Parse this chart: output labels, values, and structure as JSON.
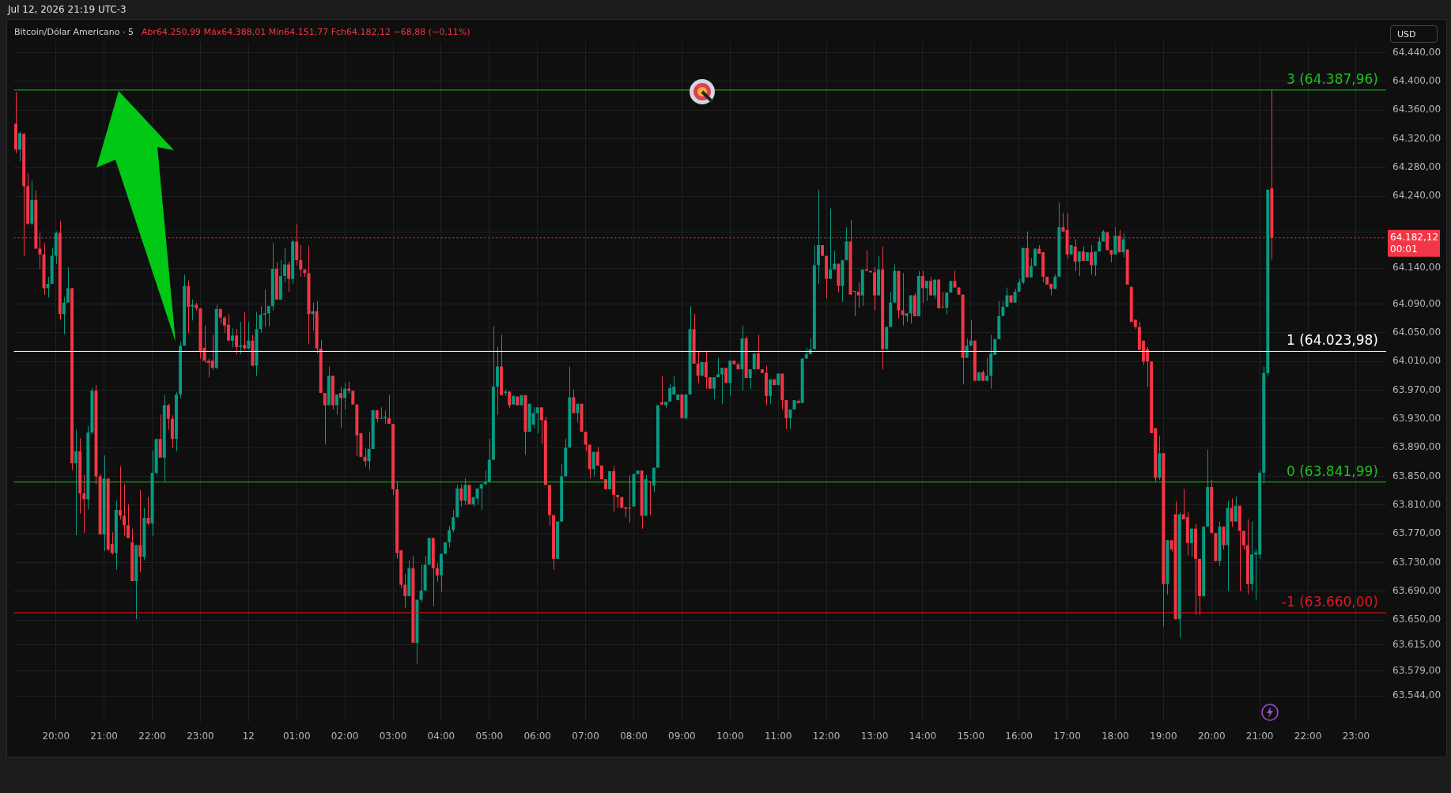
{
  "chart_data": {
    "type": "candlestick",
    "title": "Bitcoin/Dólar Americano · 5",
    "subtitle": "Abr64.250,99 Máx64.388,01 Mín64.151,77 Fch64.182,12 −68,88 (−0,11%)",
    "ylabel": "USD",
    "annotations": [
      "Jul 12, 2026 21:19 UTC-3",
      "00:01"
    ],
    "categories": [
      null,
      null,
      null,
      null,
      null,
      null,
      null,
      null,
      null,
      null,
      "20:00",
      null,
      null,
      null,
      null,
      null,
      null,
      null,
      null,
      null,
      null,
      null,
      "21:00",
      null,
      null,
      null,
      null,
      null,
      null,
      null,
      null,
      null,
      null,
      null,
      "22:00",
      null,
      null,
      null,
      null,
      null,
      null,
      null,
      null,
      null,
      null,
      null,
      "23:00",
      null,
      null,
      null,
      null,
      null,
      null,
      null,
      null,
      null,
      null,
      null,
      "12",
      null,
      null,
      null,
      null,
      null,
      null,
      null,
      null,
      null,
      null,
      null,
      "01:00",
      null,
      null,
      null,
      null,
      null,
      null,
      null,
      null,
      null,
      null,
      null,
      "02:00",
      null,
      null,
      null,
      null,
      null,
      null,
      null,
      null,
      null,
      null,
      null,
      "03:00",
      null,
      null,
      null,
      null,
      null,
      null,
      null,
      null,
      null,
      null,
      null,
      "04:00",
      null,
      null,
      null,
      null,
      null,
      null,
      null,
      null,
      null,
      null,
      null,
      "05:00",
      null,
      null,
      null,
      null,
      null,
      null,
      null,
      null,
      null,
      null,
      null,
      "06:00",
      null,
      null,
      null,
      null,
      null,
      null,
      null,
      null,
      null,
      null,
      null,
      "07:00",
      null,
      null,
      null,
      null,
      null,
      null,
      null,
      null,
      null,
      null,
      null,
      "08:00",
      null,
      null,
      null,
      null,
      null,
      null,
      null,
      null,
      null,
      null,
      null,
      "09:00",
      null,
      null,
      null,
      null,
      null,
      null,
      null,
      null,
      null,
      null,
      null,
      "10:00",
      null,
      null,
      null,
      null,
      null,
      null,
      null,
      null,
      null,
      null,
      null,
      "11:00",
      null,
      null,
      null,
      null,
      null,
      null,
      null,
      null,
      null,
      null,
      null,
      "12:00",
      null,
      null,
      null,
      null,
      null,
      null,
      null,
      null,
      null,
      null,
      null,
      "13:00",
      null,
      null,
      null,
      null,
      null,
      null,
      null,
      null,
      null,
      null,
      null,
      "14:00",
      null,
      null,
      null,
      null,
      null,
      null,
      null,
      null,
      null,
      null,
      null,
      "15:00",
      null,
      null,
      null,
      null,
      null,
      null,
      null,
      null,
      null,
      null,
      null,
      "16:00",
      null,
      null,
      null,
      null,
      null,
      null,
      null,
      null,
      null,
      null,
      null,
      "17:00",
      null,
      null,
      null,
      null,
      null,
      null,
      null,
      null,
      null,
      null,
      null,
      "18:00",
      null,
      null,
      null,
      null,
      null,
      null,
      null,
      null,
      null,
      null,
      null,
      "19:00",
      null,
      null,
      null,
      null,
      null,
      null,
      null,
      null,
      null,
      null,
      null,
      "20:00",
      null,
      null,
      null,
      null,
      null,
      null,
      null,
      null,
      null,
      null,
      null,
      "21:00",
      null,
      null,
      null,
      null,
      null,
      null,
      null,
      null,
      null,
      null,
      null,
      "22:00",
      null,
      null,
      null,
      null,
      null,
      null,
      null,
      null,
      null,
      null,
      null,
      "23:00",
      null,
      null,
      null,
      null,
      null,
      null,
      null
    ],
    "ohlc": [
      [
        64341,
        64385,
        64300,
        64305
      ],
      [
        64305,
        64330,
        64289,
        64328
      ],
      [
        64327,
        64328,
        64157,
        64254
      ],
      [
        64254,
        64272,
        64200,
        64202
      ],
      [
        64202,
        64262,
        64200,
        64235
      ],
      [
        64235,
        64248,
        64167,
        64167
      ],
      [
        64167,
        64189,
        64139,
        64159
      ],
      [
        64159,
        64175,
        64103,
        64112
      ],
      [
        64112,
        64128,
        64099,
        64118
      ],
      [
        64118,
        64168,
        64118,
        64157
      ],
      [
        64157,
        64191,
        64146,
        64189
      ],
      [
        64189,
        64206,
        64068,
        64076
      ],
      [
        64076,
        64100,
        64048,
        64092
      ],
      [
        64092,
        64141,
        64092,
        64112
      ],
      [
        64112,
        64112,
        63859,
        63868
      ],
      [
        63868,
        63915,
        63768,
        63885
      ],
      [
        63885,
        63903,
        63798,
        63826
      ],
      [
        63826,
        63852,
        63771,
        63818
      ],
      [
        63818,
        63920,
        63804,
        63911
      ],
      [
        63911,
        63973,
        63909,
        63969
      ],
      [
        63969,
        63977,
        63839,
        63850
      ],
      [
        63850,
        63853,
        63769,
        63769
      ],
      [
        63769,
        63879,
        63746,
        63847
      ],
      [
        63847,
        63847,
        63746,
        63748
      ],
      [
        63756,
        63772,
        63741,
        63743
      ],
      [
        63743,
        63816,
        63720,
        63803
      ],
      [
        63803,
        63864,
        63790,
        63795
      ],
      [
        63795,
        63839,
        63767,
        63782
      ],
      [
        63782,
        63811,
        63764,
        63764
      ],
      [
        63758,
        63777,
        63704,
        63704
      ],
      [
        63704,
        63754,
        63651,
        63754
      ],
      [
        63754,
        63831,
        63717,
        63738
      ],
      [
        63738,
        63806,
        63733,
        63792
      ],
      [
        63792,
        63821,
        63782,
        63784
      ],
      [
        63784,
        63886,
        63767,
        63855
      ],
      [
        63855,
        63902,
        63852,
        63902
      ],
      [
        63902,
        63936,
        63876,
        63876
      ],
      [
        63876,
        63963,
        63842,
        63949
      ],
      [
        63949,
        63951,
        63915,
        63930
      ],
      [
        63930,
        63935,
        63889,
        63902
      ],
      [
        63902,
        63967,
        63885,
        63964
      ],
      [
        63964,
        64037,
        63959,
        64032
      ],
      [
        64032,
        64131,
        64032,
        64115
      ],
      [
        64115,
        64123,
        64050,
        64086
      ],
      [
        64086,
        64096,
        64067,
        64089
      ],
      [
        64089,
        64092,
        64081,
        64084
      ],
      [
        64084,
        64084,
        64014,
        64024
      ],
      [
        64029,
        64060,
        64008,
        64011
      ],
      [
        64011,
        64014,
        63988,
        64008
      ],
      [
        64011,
        64047,
        63998,
        64001
      ],
      [
        64001,
        64089,
        63999,
        64083
      ],
      [
        64083,
        64083,
        64063,
        64071
      ],
      [
        64071,
        64073,
        64050,
        64060
      ],
      [
        64061,
        64076,
        64039,
        64039
      ],
      [
        64039,
        64056,
        64029,
        64046
      ],
      [
        64046,
        64055,
        64020,
        64030
      ],
      [
        64030,
        64065,
        64020,
        64032
      ],
      [
        64033,
        64079,
        64026,
        64028
      ],
      [
        64028,
        64065,
        64027,
        64039
      ],
      [
        64039,
        64047,
        64004,
        64004
      ],
      [
        64004,
        64079,
        63990,
        64055
      ],
      [
        64055,
        64087,
        64050,
        64075
      ],
      [
        64075,
        64110,
        64058,
        64077
      ],
      [
        64077,
        64087,
        64059,
        64087
      ],
      [
        64087,
        64175,
        64081,
        64139
      ],
      [
        64139,
        64148,
        64096,
        64096
      ],
      [
        64096,
        64151,
        64096,
        64129
      ],
      [
        64129,
        64168,
        64120,
        64145
      ],
      [
        64145,
        64149,
        64107,
        64125
      ],
      [
        64125,
        64180,
        64118,
        64177
      ],
      [
        64177,
        64201,
        64144,
        64151
      ],
      [
        64151,
        64172,
        64128,
        64138
      ],
      [
        64138,
        64138,
        64128,
        64133
      ],
      [
        64133,
        64171,
        64034,
        64076
      ],
      [
        64076,
        64092,
        64053,
        64080
      ],
      [
        64080,
        64094,
        64021,
        64028
      ],
      [
        64028,
        64040,
        63966,
        63966
      ],
      [
        63966,
        63966,
        63895,
        63949
      ],
      [
        63949,
        64003,
        63949,
        63990
      ],
      [
        63990,
        63990,
        63943,
        63949
      ],
      [
        63949,
        63964,
        63936,
        63964
      ],
      [
        63966,
        63975,
        63917,
        63959
      ],
      [
        63959,
        63980,
        63943,
        63972
      ],
      [
        63972,
        63982,
        63965,
        63969
      ],
      [
        63969,
        63969,
        63950,
        63950
      ],
      [
        63950,
        63950,
        63878,
        63907
      ],
      [
        63910,
        63910,
        63877,
        63877
      ],
      [
        63877,
        63889,
        63863,
        63871
      ],
      [
        63871,
        63912,
        63859,
        63888
      ],
      [
        63888,
        63942,
        63888,
        63942
      ],
      [
        63942,
        63942,
        63925,
        63930
      ],
      [
        63930,
        63946,
        63930,
        63931
      ],
      [
        63931,
        63942,
        63923,
        63933
      ],
      [
        63931,
        63963,
        63923,
        63923
      ],
      [
        63923,
        63923,
        63824,
        63832
      ],
      [
        63832,
        63843,
        63735,
        63743
      ],
      [
        63747,
        63747,
        63694,
        63699
      ],
      [
        63699,
        63714,
        63666,
        63683
      ],
      [
        63683,
        63733,
        63683,
        63722
      ],
      [
        63722,
        63739,
        63618,
        63618
      ],
      [
        63618,
        63678,
        63589,
        63678
      ],
      [
        63678,
        63727,
        63675,
        63691
      ],
      [
        63691,
        63739,
        63691,
        63727
      ],
      [
        63727,
        63764,
        63727,
        63764
      ],
      [
        63764,
        63764,
        63669,
        63722
      ],
      [
        63722,
        63729,
        63703,
        63712
      ],
      [
        63712,
        63742,
        63689,
        63742
      ],
      [
        63742,
        63758,
        63742,
        63758
      ],
      [
        63758,
        63781,
        63751,
        63775
      ],
      [
        63775,
        63803,
        63772,
        63793
      ],
      [
        63793,
        63838,
        63793,
        63833
      ],
      [
        63833,
        63839,
        63808,
        63816
      ],
      [
        63816,
        63847,
        63810,
        63838
      ],
      [
        63838,
        63838,
        63811,
        63811
      ],
      [
        63811,
        63821,
        63808,
        63821
      ],
      [
        63819,
        63833,
        63811,
        63833
      ],
      [
        63833,
        63839,
        63803,
        63839
      ],
      [
        63839,
        63858,
        63838,
        63842
      ],
      [
        63842,
        63902,
        63842,
        63873
      ],
      [
        63873,
        64059,
        63873,
        63975
      ],
      [
        63975,
        64030,
        63936,
        64003
      ],
      [
        64003,
        64047,
        63963,
        63963
      ],
      [
        63966,
        63971,
        63962,
        63968
      ],
      [
        63968,
        63968,
        63945,
        63949
      ],
      [
        63950,
        63962,
        63950,
        63962
      ],
      [
        63961,
        63961,
        63949,
        63949
      ],
      [
        63949,
        63963,
        63949,
        63963
      ],
      [
        63963,
        63963,
        63880,
        63912
      ],
      [
        63912,
        63951,
        63912,
        63951
      ],
      [
        63922,
        63946,
        63917,
        63938
      ],
      [
        63938,
        63946,
        63910,
        63946
      ],
      [
        63946,
        63946,
        63895,
        63928
      ],
      [
        63928,
        63933,
        63838,
        63838
      ],
      [
        63838,
        63838,
        63781,
        63796
      ],
      [
        63796,
        63796,
        63720,
        63735
      ],
      [
        63735,
        63787,
        63735,
        63787
      ],
      [
        63787,
        63867,
        63787,
        63850
      ],
      [
        63850,
        63902,
        63850,
        63890
      ],
      [
        63890,
        64003,
        63890,
        63960
      ],
      [
        63960,
        63971,
        63938,
        63938
      ],
      [
        63938,
        63951,
        63925,
        63951
      ],
      [
        63951,
        63951,
        63912,
        63912
      ],
      [
        63912,
        63912,
        63885,
        63894
      ],
      [
        63894,
        63894,
        63847,
        63860
      ],
      [
        63860,
        63884,
        63850,
        63884
      ],
      [
        63884,
        63891,
        63865,
        63865
      ],
      [
        63865,
        63865,
        63846,
        63846
      ],
      [
        63846,
        63846,
        63832,
        63832
      ],
      [
        63832,
        63857,
        63832,
        63857
      ],
      [
        63857,
        63864,
        63801,
        63824
      ],
      [
        63824,
        63824,
        63806,
        63821
      ],
      [
        63821,
        63821,
        63806,
        63806
      ],
      [
        63807,
        63807,
        63793,
        63805
      ],
      [
        63806,
        63851,
        63785,
        63805
      ],
      [
        63808,
        63853,
        63808,
        63853
      ],
      [
        63853,
        63858,
        63853,
        63858
      ],
      [
        63858,
        63858,
        63777,
        63795
      ],
      [
        63795,
        63852,
        63795,
        63846
      ],
      [
        63843,
        63843,
        63796,
        63842
      ],
      [
        63837,
        63862,
        63828,
        63862
      ],
      [
        63862,
        63949,
        63862,
        63949
      ],
      [
        63953,
        63990,
        63950,
        63950
      ],
      [
        63949,
        63954,
        63945,
        63954
      ],
      [
        63954,
        63978,
        63954,
        63973
      ],
      [
        63964,
        63990,
        63964,
        63975
      ],
      [
        63956,
        63964,
        63956,
        63964
      ],
      [
        63964,
        63964,
        63931,
        63931
      ],
      [
        63931,
        63964,
        63929,
        63964
      ],
      [
        63964,
        64087,
        63964,
        64055
      ],
      [
        64055,
        64076,
        64007,
        64007
      ],
      [
        64007,
        64024,
        63980,
        63990
      ],
      [
        63990,
        64009,
        63990,
        64009
      ],
      [
        64009,
        64025,
        63972,
        63988
      ],
      [
        63988,
        63988,
        63972,
        63972
      ],
      [
        63972,
        63988,
        63957,
        63988
      ],
      [
        63988,
        64015,
        63988,
        63992
      ],
      [
        63992,
        64001,
        63951,
        64001
      ],
      [
        64001,
        64001,
        63980,
        63980
      ],
      [
        63980,
        64011,
        63962,
        64011
      ],
      [
        64011,
        64011,
        64006,
        64006
      ],
      [
        64006,
        64008,
        63999,
        63999
      ],
      [
        63999,
        64060,
        63969,
        64042
      ],
      [
        64042,
        64045,
        63987,
        63987
      ],
      [
        63987,
        63999,
        63972,
        63999
      ],
      [
        63999,
        64021,
        63999,
        64021
      ],
      [
        64021,
        64047,
        63999,
        63999
      ],
      [
        63999,
        63999,
        63994,
        63994
      ],
      [
        63994,
        64004,
        63949,
        63962
      ],
      [
        63962,
        63985,
        63951,
        63985
      ],
      [
        63985,
        63985,
        63977,
        63977
      ],
      [
        63977,
        63993,
        63977,
        63993
      ],
      [
        63993,
        63993,
        63943,
        63956
      ],
      [
        63956,
        63956,
        63916,
        63931
      ],
      [
        63931,
        63943,
        63916,
        63943
      ],
      [
        63943,
        63956,
        63943,
        63956
      ],
      [
        63955,
        63957,
        63952,
        63952
      ],
      [
        63952,
        64014,
        63952,
        64014
      ],
      [
        64014,
        64029,
        64014,
        64020
      ],
      [
        64020,
        64042,
        64020,
        64027
      ],
      [
        64027,
        64172,
        64027,
        64144
      ],
      [
        64144,
        64249,
        64118,
        64172
      ],
      [
        64172,
        64172,
        64157,
        64157
      ],
      [
        64157,
        64157,
        64098,
        64125
      ],
      [
        64125,
        64223,
        64125,
        64138
      ],
      [
        64138,
        64164,
        64138,
        64146
      ],
      [
        64146,
        64146,
        64106,
        64115
      ],
      [
        64115,
        64151,
        64093,
        64151
      ],
      [
        64151,
        64197,
        64151,
        64177
      ],
      [
        64177,
        64207,
        64103,
        64103
      ],
      [
        64108,
        64108,
        64073,
        64107
      ],
      [
        64107,
        64120,
        64085,
        64102
      ],
      [
        64102,
        64138,
        64087,
        64138
      ],
      [
        64138,
        64165,
        64136,
        64136
      ],
      [
        64136,
        64136,
        64134,
        64134
      ],
      [
        64134,
        64141,
        64081,
        64102
      ],
      [
        64102,
        64157,
        64102,
        64138
      ],
      [
        64138,
        64170,
        63999,
        64027
      ],
      [
        64027,
        64058,
        64027,
        64058
      ],
      [
        64058,
        64107,
        64058,
        64092
      ],
      [
        64092,
        64145,
        64092,
        64136
      ],
      [
        64136,
        64136,
        64070,
        64081
      ],
      [
        64081,
        64133,
        64060,
        64075
      ],
      [
        64073,
        64077,
        64065,
        64077
      ],
      [
        64077,
        64102,
        64063,
        64102
      ],
      [
        64102,
        64105,
        64073,
        64073
      ],
      [
        64073,
        64136,
        64073,
        64129
      ],
      [
        64129,
        64136,
        64092,
        64112
      ],
      [
        64112,
        64122,
        64094,
        64122
      ],
      [
        64122,
        64128,
        64102,
        64102
      ],
      [
        64102,
        64124,
        64097,
        64124
      ],
      [
        64124,
        64124,
        64084,
        64084
      ],
      [
        64086,
        64107,
        64085,
        64085
      ],
      [
        64085,
        64106,
        64075,
        64106
      ],
      [
        64106,
        64122,
        64106,
        64122
      ],
      [
        64122,
        64136,
        64113,
        64113
      ],
      [
        64113,
        64113,
        64103,
        64103
      ],
      [
        64103,
        64103,
        63978,
        64015
      ],
      [
        64015,
        64042,
        64015,
        64032
      ],
      [
        64032,
        64068,
        64032,
        64039
      ],
      [
        64039,
        64039,
        63983,
        63983
      ],
      [
        63983,
        63995,
        63983,
        63995
      ],
      [
        63995,
        63998,
        63983,
        63983
      ],
      [
        63983,
        64015,
        63983,
        63990
      ],
      [
        63990,
        64047,
        63972,
        64021
      ],
      [
        64019,
        64041,
        64019,
        64041
      ],
      [
        64041,
        64094,
        64041,
        64073
      ],
      [
        64073,
        64094,
        64073,
        64086
      ],
      [
        64086,
        64113,
        64086,
        64102
      ],
      [
        64102,
        64102,
        64092,
        64092
      ],
      [
        64092,
        64111,
        64092,
        64107
      ],
      [
        64107,
        64125,
        64107,
        64120
      ],
      [
        64120,
        64168,
        64118,
        64168
      ],
      [
        64168,
        64191,
        64127,
        64127
      ],
      [
        64127,
        64154,
        64127,
        64143
      ],
      [
        64143,
        64167,
        64143,
        64167
      ],
      [
        64167,
        64172,
        64160,
        64160
      ],
      [
        64162,
        64162,
        64120,
        64128
      ],
      [
        64128,
        64128,
        64117,
        64117
      ],
      [
        64118,
        64118,
        64102,
        64111
      ],
      [
        64111,
        64131,
        64111,
        64128
      ],
      [
        64128,
        64231,
        64128,
        64197
      ],
      [
        64197,
        64217,
        64191,
        64191
      ],
      [
        64193,
        64217,
        64153,
        64159
      ],
      [
        64159,
        64172,
        64159,
        64172
      ],
      [
        64170,
        64180,
        64136,
        64149
      ],
      [
        64149,
        64163,
        64129,
        64163
      ],
      [
        64163,
        64170,
        64150,
        64150
      ],
      [
        64150,
        64162,
        64150,
        64162
      ],
      [
        64162,
        64172,
        64131,
        64144
      ],
      [
        64144,
        64163,
        64129,
        64163
      ],
      [
        64163,
        64183,
        64163,
        64177
      ],
      [
        64177,
        64193,
        64177,
        64191
      ],
      [
        64190,
        64190,
        64165,
        64165
      ],
      [
        64165,
        64165,
        64148,
        64159
      ],
      [
        64159,
        64197,
        64159,
        64185
      ],
      [
        64185,
        64193,
        64162,
        64162
      ],
      [
        64162,
        64188,
        64155,
        64180
      ],
      [
        64166,
        64166,
        64117,
        64117
      ],
      [
        64114,
        64114,
        64065,
        64065
      ],
      [
        64068,
        64068,
        64055,
        64058
      ],
      [
        64058,
        64065,
        64026,
        64026
      ],
      [
        64039,
        64039,
        64005,
        64010
      ],
      [
        64027,
        64030,
        63974,
        64010
      ],
      [
        64010,
        64010,
        63910,
        63910
      ],
      [
        63917,
        63917,
        63843,
        63848
      ],
      [
        63848,
        63906,
        63845,
        63882
      ],
      [
        63882,
        63882,
        63641,
        63700
      ],
      [
        63700,
        63761,
        63685,
        63761
      ],
      [
        63761,
        63761,
        63745,
        63748
      ],
      [
        63797,
        63815,
        63651,
        63651
      ],
      [
        63651,
        63800,
        63625,
        63797
      ],
      [
        63797,
        63832,
        63790,
        63790
      ],
      [
        63793,
        63800,
        63740,
        63757
      ],
      [
        63757,
        63777,
        63738,
        63777
      ],
      [
        63777,
        63784,
        63657,
        63735
      ],
      [
        63735,
        63735,
        63657,
        63683
      ],
      [
        63683,
        63780,
        63683,
        63780
      ],
      [
        63780,
        63887,
        63780,
        63835
      ],
      [
        63835,
        63845,
        63771,
        63771
      ],
      [
        63771,
        63771,
        63732,
        63732
      ],
      [
        63732,
        63787,
        63725,
        63780
      ],
      [
        63780,
        63780,
        63748,
        63754
      ],
      [
        63754,
        63816,
        63690,
        63806
      ],
      [
        63806,
        63819,
        63780,
        63787
      ],
      [
        63787,
        63822,
        63787,
        63809
      ],
      [
        63809,
        63809,
        63690,
        63774
      ],
      [
        63774,
        63774,
        63748,
        63754
      ],
      [
        63754,
        63790,
        63686,
        63700
      ],
      [
        63700,
        63787,
        63690,
        63741
      ],
      [
        63741,
        63748,
        63677,
        63744
      ],
      [
        63741,
        63858,
        63735,
        63855
      ],
      [
        63855,
        64003,
        63840,
        63994
      ],
      [
        63994,
        64249,
        63990,
        64249
      ],
      [
        64250.99,
        64388.01,
        64151.77,
        64182.12
      ],
      null,
      null,
      null,
      null,
      null,
      null,
      null,
      null,
      null,
      null,
      null,
      null,
      null,
      null,
      null,
      null,
      null,
      null,
      null,
      null,
      null,
      null,
      null,
      null,
      null,
      null,
      null,
      null
    ],
    "ylim": [
      63508,
      64455
    ],
    "yticks": [
      {
        "value": 64440,
        "label": "64.440,00"
      },
      {
        "value": 64400,
        "label": "64.400,00"
      },
      {
        "value": 64360,
        "label": "64.360,00"
      },
      {
        "value": 64320,
        "label": "64.320,00"
      },
      {
        "value": 64280,
        "label": "64.280,00"
      },
      {
        "value": 64240,
        "label": "64.240,00"
      },
      {
        "value": 64190,
        "label": null
      },
      {
        "value": 64140,
        "label": "64.140,00"
      },
      {
        "value": 64090,
        "label": "64.090,00"
      },
      {
        "value": 64050,
        "label": "64.050,00"
      },
      {
        "value": 64010,
        "label": "64.010,00"
      },
      {
        "value": 63970,
        "label": "63.970,00"
      },
      {
        "value": 63930,
        "label": "63.930,00"
      },
      {
        "value": 63890,
        "label": "63.890,00"
      },
      {
        "value": 63850,
        "label": "63.850,00"
      },
      {
        "value": 63810,
        "label": "63.810,00"
      },
      {
        "value": 63770,
        "label": "63.770,00"
      },
      {
        "value": 63730,
        "label": "63.730,00"
      },
      {
        "value": 63690,
        "label": "63.690,00"
      },
      {
        "value": 63650,
        "label": "63.650,00"
      },
      {
        "value": 63615,
        "label": "63.615,00"
      },
      {
        "value": 63579,
        "label": "63.579,00"
      },
      {
        "value": 63544,
        "label": "63.544,00"
      }
    ],
    "grid": true,
    "ref_lines": [
      {
        "axis": "y",
        "value": 64387.96,
        "label": "3 (64.387,96)",
        "color": "#1fbf1f",
        "line_style": "solid"
      },
      {
        "axis": "y",
        "value": 64023.98,
        "label": "1 (64.023,98)",
        "color": "#ffffff",
        "line_style": "solid"
      },
      {
        "axis": "y",
        "value": 63841.99,
        "label": "0 (63.841,99)",
        "color": "#1fbf1f",
        "line_style": "solid"
      },
      {
        "axis": "y",
        "value": 63660,
        "label": "-1 (63.660,00)",
        "color": "#e8161d",
        "line_style": "solid"
      },
      {
        "axis": "y",
        "value": 64182.12,
        "label": "64.182,12",
        "color": "#f23645",
        "line_style": "dotted"
      }
    ]
  }
}
